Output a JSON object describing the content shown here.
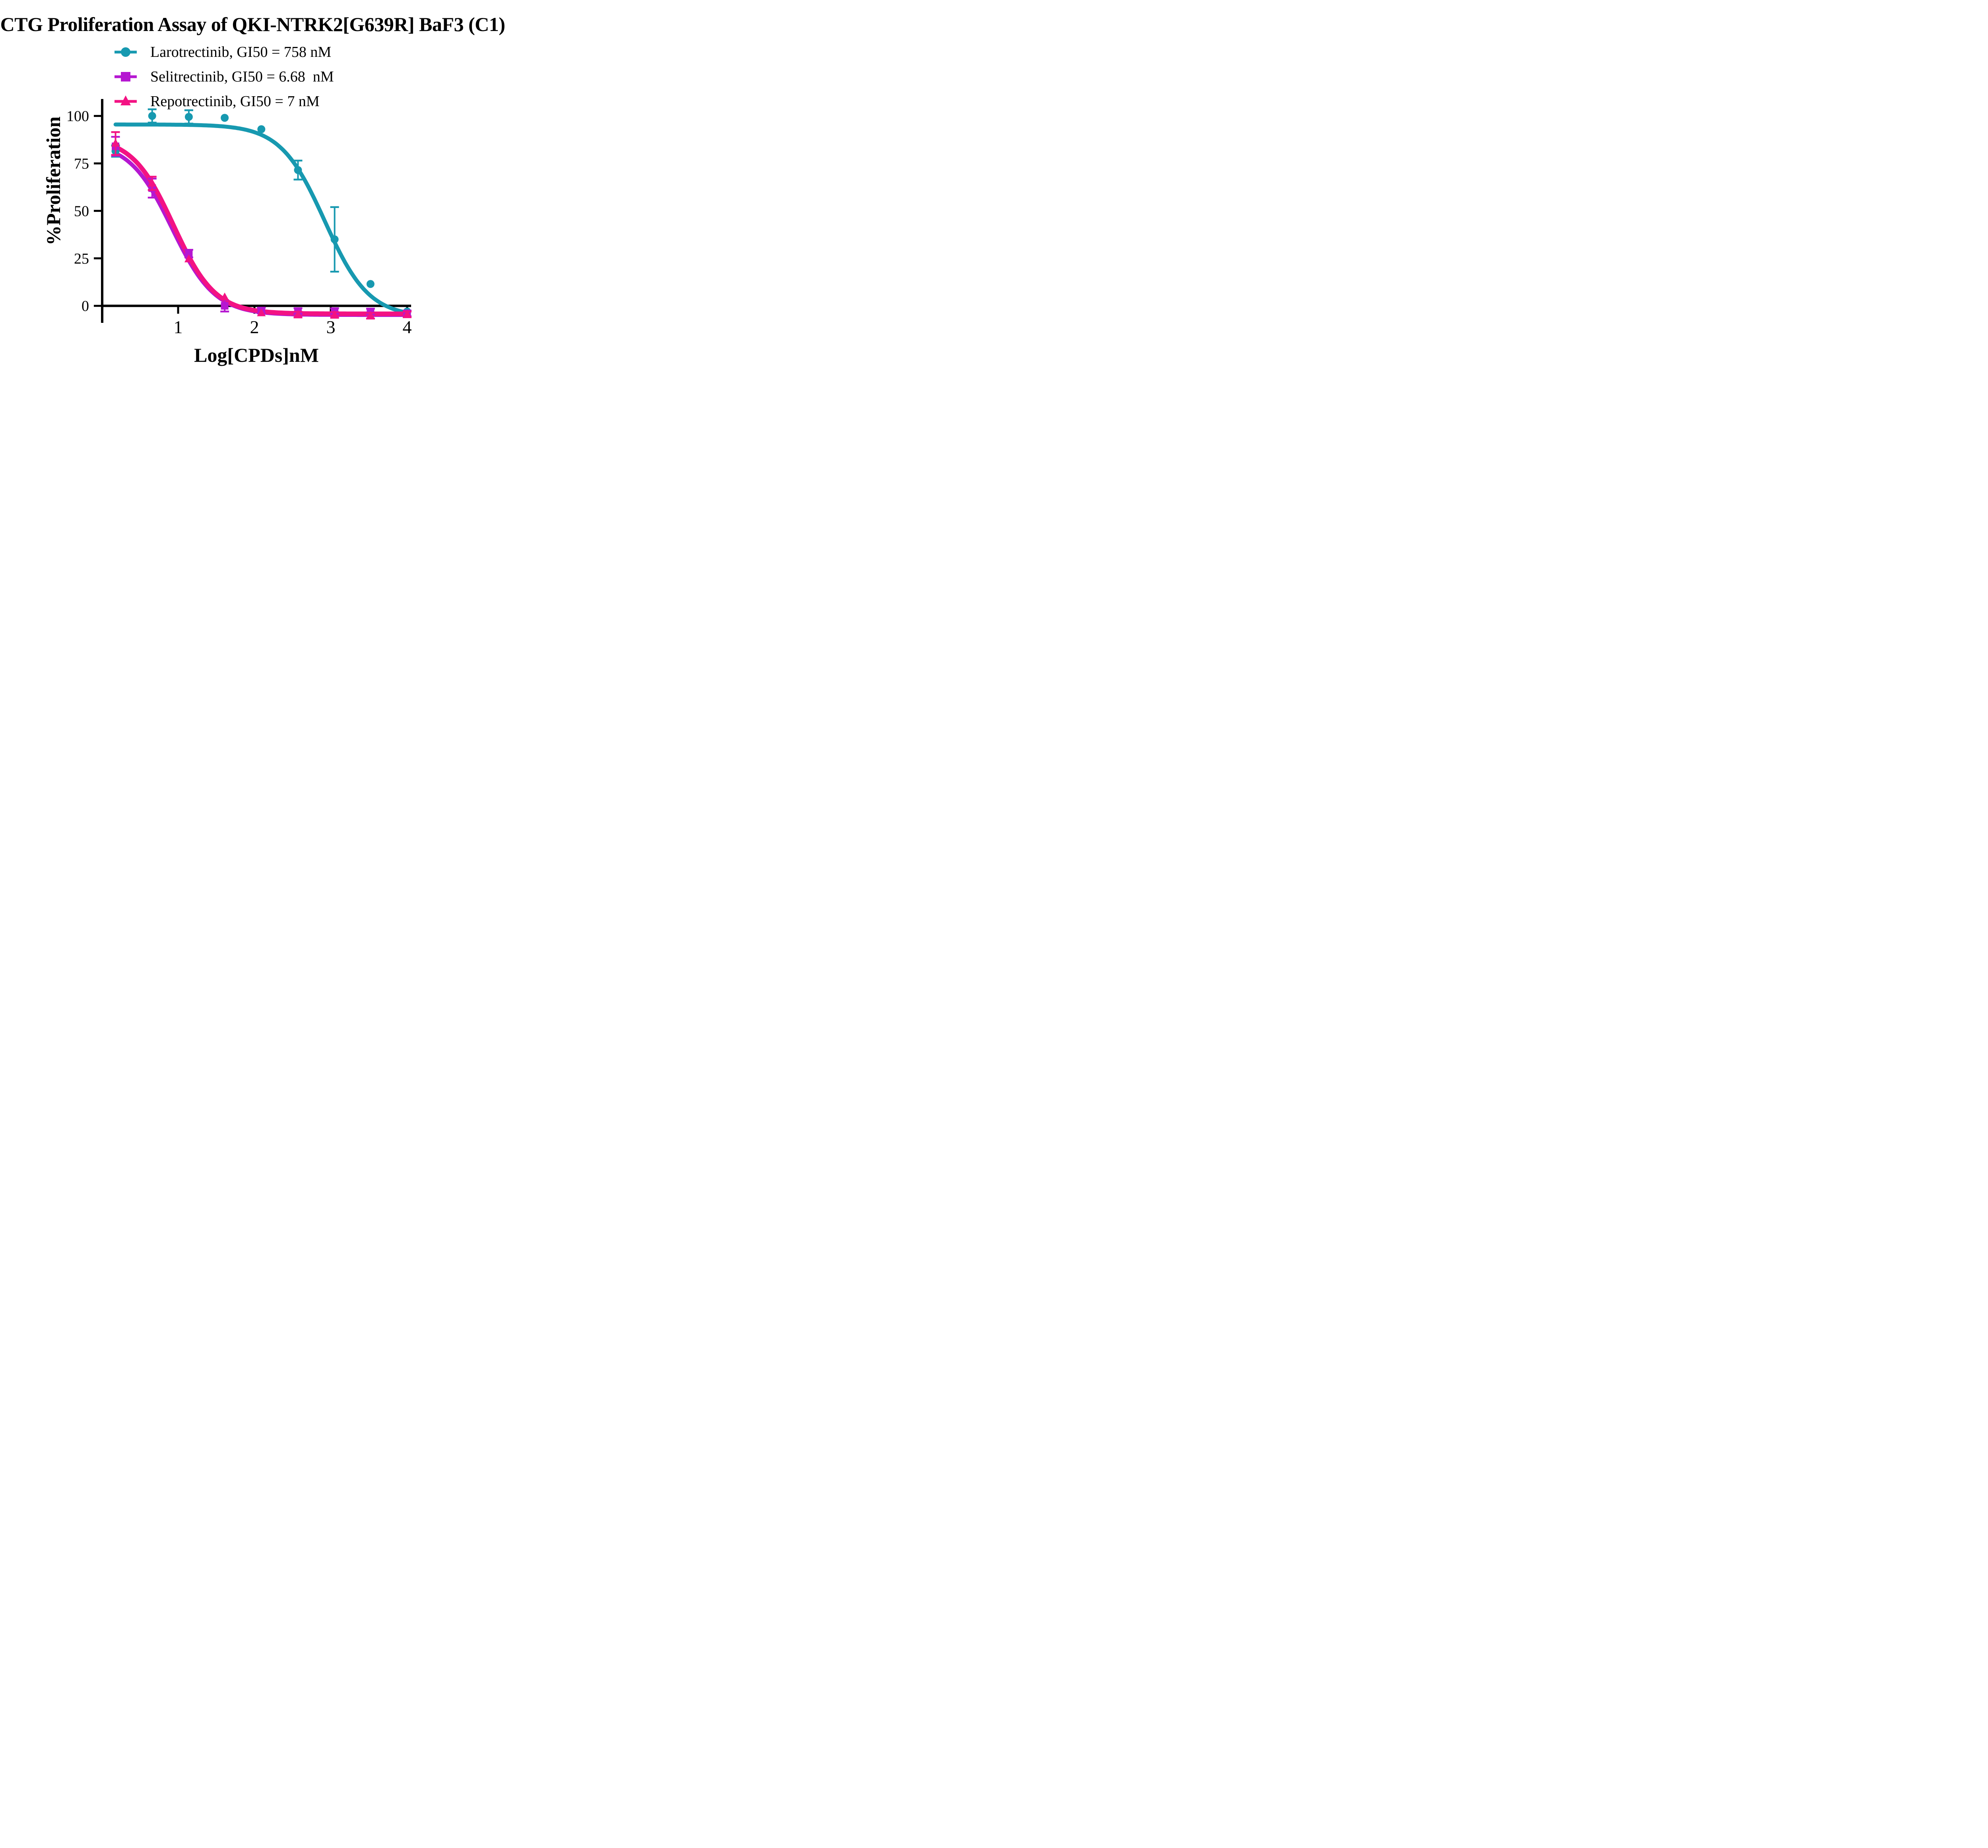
{
  "chart_data": {
    "type": "scatter",
    "title": "CTG Proliferation Assay of QKI-NTRK2[G639R] BaF3 (C1)",
    "xlabel": "Log[CPDs]nM",
    "ylabel": "%Proliferation",
    "x_ticks": [
      1,
      2,
      3,
      4
    ],
    "y_ticks": [
      0,
      25,
      50,
      75,
      100
    ],
    "x_axis_range_log": [
      0.0,
      4.05
    ],
    "y_axis_tick_range": [
      0,
      100
    ],
    "grid": false,
    "legend_position": "top-left",
    "background_color": "#ffffff",
    "axis_color": "#000000",
    "series": [
      {
        "name": "Larotrectinib",
        "legend_label": "Larotrectinib, GI50 = 758 nM",
        "gi50": "758 nM",
        "color": "#1799B0",
        "marker": "circle",
        "x_log_nm": [
          0.18,
          0.66,
          1.14,
          1.61,
          2.09,
          2.57,
          3.05,
          3.52,
          4.0
        ],
        "y_percent": [
          81.5,
          100,
          99.5,
          99,
          93,
          71.5,
          35,
          11.5,
          -3
        ],
        "y_err": [
          3,
          3.5,
          3.5,
          0,
          0,
          5,
          17,
          0,
          0
        ],
        "fit_4pl": {
          "top": 95.5,
          "bottom": -6,
          "logec50": 2.92,
          "hill": 1.5
        }
      },
      {
        "name": "Selitrectinib",
        "legend_label": "Selitrectinib, GI50 = 6.68  nM",
        "gi50": "6.68 nM",
        "color": "#B517D1",
        "marker": "square",
        "x_log_nm": [
          0.18,
          0.66,
          1.14,
          1.61,
          2.09,
          2.57,
          3.05,
          3.52,
          4.0
        ],
        "y_percent": [
          84,
          62,
          27.5,
          0,
          -2.5,
          -2.8,
          -2.8,
          -3,
          -4
        ],
        "y_err": [
          5,
          5,
          2,
          3,
          1.5,
          1.5,
          1.5,
          1.5,
          1.5
        ],
        "fit_4pl": {
          "top": 86.5,
          "bottom": -4.8,
          "logec50": 0.92,
          "hill": 1.55
        }
      },
      {
        "name": "Repotrectinib",
        "legend_label": "Repotrectinib, GI50 = 7 nM",
        "gi50": "7 nM",
        "color": "#F31283",
        "marker": "triangle",
        "x_log_nm": [
          0.18,
          0.66,
          1.14,
          1.61,
          2.09,
          2.57,
          3.05,
          3.52,
          4.0
        ],
        "y_percent": [
          85.5,
          64.5,
          24.6,
          4.5,
          -3.8,
          -4.6,
          -4.8,
          -5.2,
          -4.5
        ],
        "y_err": [
          6,
          3.5,
          0,
          0,
          0,
          1.5,
          1.5,
          1.5,
          1.5
        ],
        "fit_4pl": {
          "top": 89,
          "bottom": -4.2,
          "logec50": 0.94,
          "hill": 1.6
        }
      }
    ]
  }
}
